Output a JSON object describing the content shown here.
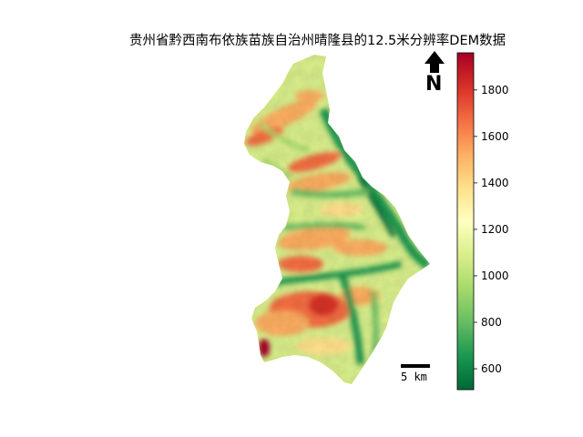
{
  "title": "贵州省黔西南布依族苗族自治州晴隆县的12.5米分辨率DEM数据",
  "north_arrow": {
    "label": "N"
  },
  "scale_bar": {
    "label": "5 km"
  },
  "colorbar": {
    "colormap": "RdYlGn_r",
    "vmin": 510,
    "vmax": 1960,
    "ticks": [
      "600",
      "800",
      "1000",
      "1200",
      "1400",
      "1600",
      "1800"
    ],
    "colors": [
      "#006837",
      "#1a9850",
      "#66bd63",
      "#a6d96a",
      "#d9ef8b",
      "#ffffbf",
      "#fee08b",
      "#fdae61",
      "#f46d43",
      "#d73027",
      "#a50026"
    ]
  }
}
